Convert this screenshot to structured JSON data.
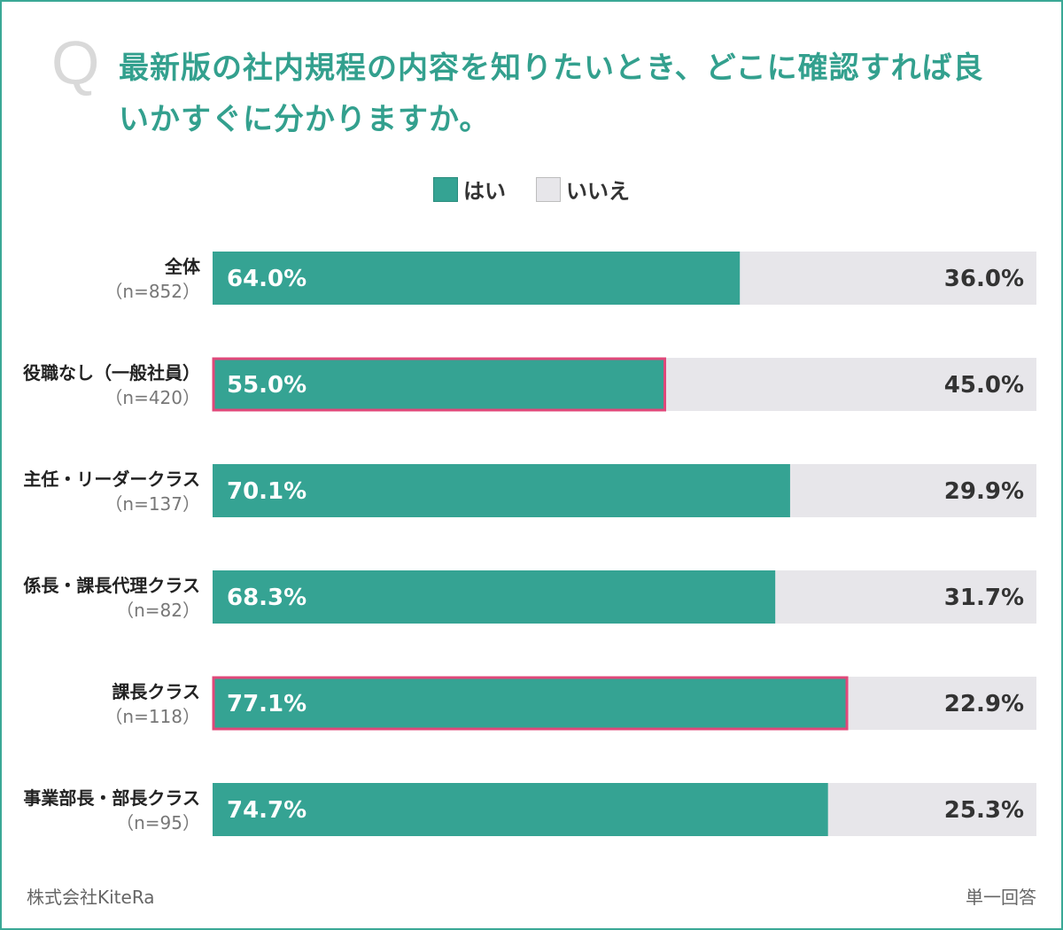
{
  "title": "最新版の社内規程の内容を知りたいとき、どこに確認すれば良いかすぐに分かりますか。",
  "q_mark": "Q",
  "legend": [
    {
      "label": "はい",
      "color": "#35a393"
    },
    {
      "label": "いいえ",
      "color": "#e7e6ea"
    }
  ],
  "chart_data": {
    "type": "bar",
    "stacked": true,
    "orientation": "horizontal",
    "categories": [
      {
        "name": "全体",
        "n": "（n=852）"
      },
      {
        "name": "役職なし（一般社員）",
        "n": "（n=420）"
      },
      {
        "name": "主任・リーダークラス",
        "n": "（n=137）"
      },
      {
        "name": "係長・課長代理クラス",
        "n": "（n=82）"
      },
      {
        "name": "課長クラス",
        "n": "（n=118）"
      },
      {
        "name": "事業部長・部長クラス",
        "n": "（n=95）"
      }
    ],
    "series": [
      {
        "name": "はい",
        "values": [
          64.0,
          55.0,
          70.1,
          68.3,
          77.1,
          74.7
        ],
        "labels": [
          "64.0%",
          "55.0%",
          "70.1%",
          "68.3%",
          "77.1%",
          "74.7%"
        ]
      },
      {
        "name": "いいえ",
        "values": [
          36.0,
          45.0,
          29.9,
          31.7,
          22.9,
          25.3
        ],
        "labels": [
          "36.0%",
          "45.0%",
          "29.9%",
          "31.7%",
          "22.9%",
          "25.3%"
        ]
      }
    ],
    "highlighted": [
      "役職なし（一般社員）",
      "課長クラス"
    ],
    "highlight_color": "#e0487a",
    "xlim": [
      0,
      100
    ]
  },
  "footer": {
    "source": "株式会社KiteRa",
    "note": "単一回答"
  }
}
